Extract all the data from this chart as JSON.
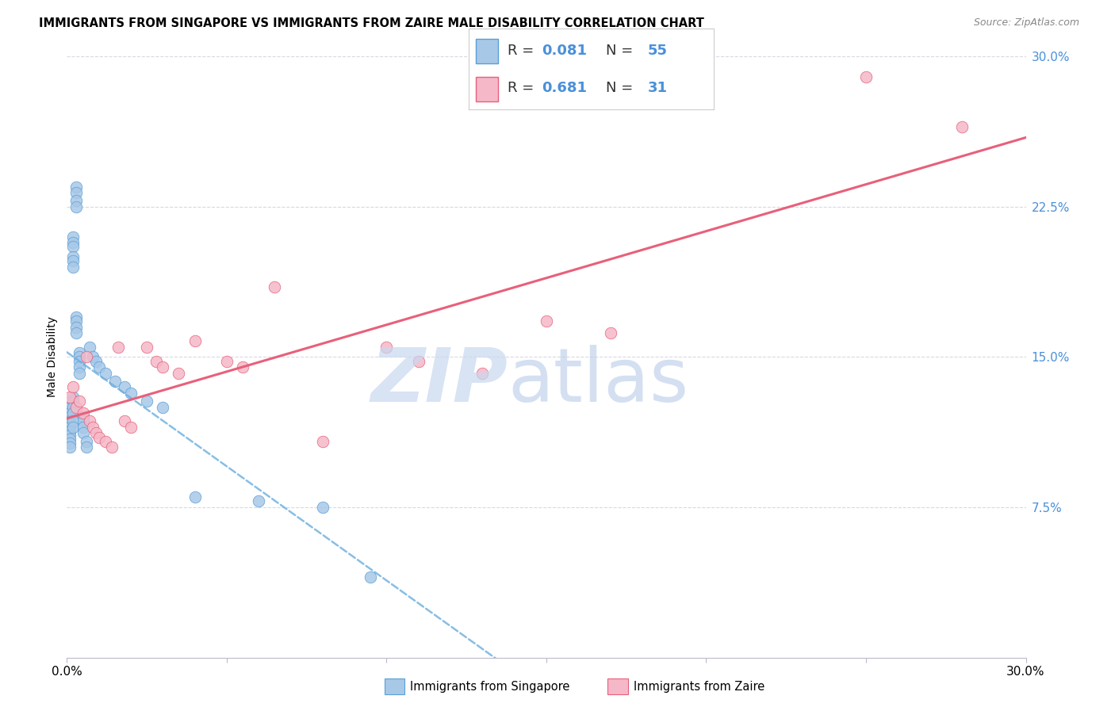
{
  "title": "IMMIGRANTS FROM SINGAPORE VS IMMIGRANTS FROM ZAIRE MALE DISABILITY CORRELATION CHART",
  "source": "Source: ZipAtlas.com",
  "ylabel": "Male Disability",
  "xlim": [
    0.0,
    0.3
  ],
  "ylim": [
    0.0,
    0.3
  ],
  "singapore_R": 0.081,
  "singapore_N": 55,
  "zaire_R": 0.681,
  "zaire_N": 31,
  "singapore_color": "#a8c8e8",
  "zaire_color": "#f5b8c8",
  "singapore_line_color": "#5a9fd4",
  "zaire_line_color": "#e8607a",
  "singapore_reg_color": "#6aaede",
  "zaire_reg_color": "#e8607a",
  "legend_text_color": "#4a90d9",
  "right_axis_color": "#4a90d9",
  "grid_color": "#d8d8e8",
  "watermark_zip_color": "#c8d8f0",
  "watermark_atlas_color": "#b8cce8",
  "singapore_x": [
    0.001,
    0.001,
    0.001,
    0.001,
    0.001,
    0.001,
    0.001,
    0.001,
    0.001,
    0.001,
    0.002,
    0.002,
    0.002,
    0.002,
    0.002,
    0.002,
    0.002,
    0.002,
    0.002,
    0.002,
    0.002,
    0.002,
    0.003,
    0.003,
    0.003,
    0.003,
    0.003,
    0.003,
    0.003,
    0.003,
    0.004,
    0.004,
    0.004,
    0.004,
    0.004,
    0.005,
    0.005,
    0.005,
    0.005,
    0.006,
    0.006,
    0.007,
    0.008,
    0.009,
    0.01,
    0.012,
    0.015,
    0.018,
    0.02,
    0.025,
    0.03,
    0.04,
    0.06,
    0.08,
    0.095
  ],
  "singapore_y": [
    0.125,
    0.122,
    0.12,
    0.118,
    0.115,
    0.113,
    0.111,
    0.109,
    0.107,
    0.105,
    0.21,
    0.207,
    0.205,
    0.2,
    0.198,
    0.195,
    0.13,
    0.128,
    0.125,
    0.122,
    0.118,
    0.115,
    0.235,
    0.232,
    0.228,
    0.225,
    0.17,
    0.168,
    0.165,
    0.162,
    0.152,
    0.15,
    0.148,
    0.145,
    0.142,
    0.12,
    0.118,
    0.115,
    0.112,
    0.108,
    0.105,
    0.155,
    0.15,
    0.148,
    0.145,
    0.142,
    0.138,
    0.135,
    0.132,
    0.128,
    0.125,
    0.08,
    0.078,
    0.075,
    0.04
  ],
  "zaire_x": [
    0.001,
    0.002,
    0.003,
    0.004,
    0.005,
    0.006,
    0.007,
    0.008,
    0.009,
    0.01,
    0.012,
    0.014,
    0.016,
    0.018,
    0.02,
    0.025,
    0.028,
    0.03,
    0.035,
    0.04,
    0.05,
    0.055,
    0.065,
    0.08,
    0.1,
    0.11,
    0.13,
    0.15,
    0.17,
    0.25,
    0.28
  ],
  "zaire_y": [
    0.13,
    0.135,
    0.125,
    0.128,
    0.122,
    0.15,
    0.118,
    0.115,
    0.112,
    0.11,
    0.108,
    0.105,
    0.155,
    0.118,
    0.115,
    0.155,
    0.148,
    0.145,
    0.142,
    0.158,
    0.148,
    0.145,
    0.185,
    0.108,
    0.155,
    0.148,
    0.142,
    0.168,
    0.162,
    0.29,
    0.265
  ]
}
